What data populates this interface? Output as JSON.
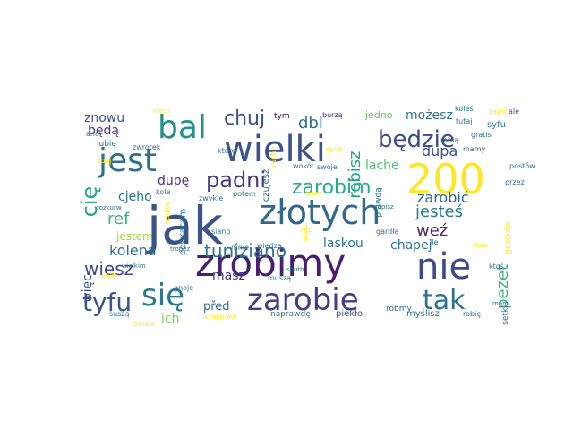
{
  "word_cloud": {
    "words": [
      {
        "text": "jak",
        "color": "#3b528b"
      },
      {
        "text": "zrobimy",
        "color": "#481f70"
      },
      {
        "text": "złotych",
        "color": "#31688e"
      },
      {
        "text": "wielki",
        "color": "#3b528b"
      },
      {
        "text": "200",
        "color": "#fde725"
      },
      {
        "text": "nie",
        "color": "#3e4989"
      },
      {
        "text": "jest",
        "color": "#2d708e"
      },
      {
        "text": "bal",
        "color": "#21918c"
      },
      {
        "text": "się",
        "color": "#2a788e"
      },
      {
        "text": "zarobie",
        "color": "#433e85"
      },
      {
        "text": "tak",
        "color": "#2c728e"
      },
      {
        "text": "tyfu",
        "color": "#38588c"
      },
      {
        "text": "będzie",
        "color": "#3e4a89"
      },
      {
        "text": "padni",
        "color": "#453882"
      },
      {
        "text": "zarobim",
        "color": "#27ad81"
      },
      {
        "text": "chuj",
        "color": "#3b528b"
      },
      {
        "text": "tuniziano",
        "color": "#2a788e"
      },
      {
        "text": "wiesz",
        "color": "#3e4989"
      },
      {
        "text": "jesteś",
        "color": "#287c8e"
      },
      {
        "text": "pezet",
        "color": "#35b779"
      },
      {
        "text": "cię",
        "color": "#21a685"
      },
      {
        "text": "ref",
        "color": "#35b779"
      },
      {
        "text": "dbl",
        "color": "#2c728e"
      },
      {
        "text": "weź",
        "color": "#472d7b"
      },
      {
        "text": "zarobić",
        "color": "#31688e"
      },
      {
        "text": "dupa",
        "color": "#3b528b"
      },
      {
        "text": "kolena",
        "color": "#2c728e"
      },
      {
        "text": "robisz",
        "color": "#20a386"
      },
      {
        "text": "możesz",
        "color": "#2c728e"
      },
      {
        "text": "znowu",
        "color": "#3b528b"
      },
      {
        "text": "będą",
        "color": "#443983"
      },
      {
        "text": "cjeho",
        "color": "#2c728e"
      },
      {
        "text": "dupę",
        "color": "#46327e"
      },
      {
        "text": "lache",
        "color": "#4ec36b"
      },
      {
        "text": "laskou",
        "color": "#2c728e"
      },
      {
        "text": "chapej",
        "color": "#2c728e"
      },
      {
        "text": "masz",
        "color": "#46327e"
      },
      {
        "text": "więc",
        "color": "#3b528b"
      },
      {
        "text": "jestem",
        "color": "#a0da39"
      },
      {
        "text": "ich",
        "color": "#7ad151"
      },
      {
        "text": "před",
        "color": "#31688e"
      },
      {
        "text": "jedno",
        "color": "#5ec962"
      },
      {
        "text": "tym",
        "color": "#440154"
      },
      {
        "text": "burzą",
        "color": "#46327e"
      },
      {
        "text": "tutaj",
        "color": "#2c728e"
      },
      {
        "text": "syfu",
        "color": "#2c728e"
      },
      {
        "text": "koleś",
        "color": "#2c728e"
      },
      {
        "text": "zapić",
        "color": "#fde725"
      },
      {
        "text": "ale",
        "color": "#3b528b"
      },
      {
        "text": "nieco",
        "color": "#fde725"
      },
      {
        "text": "anal",
        "color": "#2c728e"
      },
      {
        "text": "lubię",
        "color": "#2c728e"
      },
      {
        "text": "zwrotek",
        "color": "#2c728e"
      },
      {
        "text": "śpią",
        "color": "#fde725"
      },
      {
        "text": "które",
        "color": "#2c728e"
      },
      {
        "text": "rucha",
        "color": "#fde725"
      },
      {
        "text": "mamy",
        "color": "#3b528b"
      },
      {
        "text": "robią",
        "color": "#2c728e"
      },
      {
        "text": "gratis",
        "color": "#2c728e"
      },
      {
        "text": "czujesz",
        "color": "#2c728e"
      },
      {
        "text": "wokół",
        "color": "#2c728e"
      },
      {
        "text": "swoje",
        "color": "#2c728e"
      },
      {
        "text": "prawdą",
        "color": "#2c728e"
      },
      {
        "text": "postów",
        "color": "#2c728e"
      },
      {
        "text": "przez",
        "color": "#2c728e"
      },
      {
        "text": "kole",
        "color": "#2c728e"
      },
      {
        "text": "zwykle",
        "color": "#2c728e"
      },
      {
        "text": "potem",
        "color": "#2c728e"
      },
      {
        "text": "sram",
        "color": "#fde725"
      },
      {
        "text": "zapisz",
        "color": "#2c728e"
      },
      {
        "text": "rozkurw",
        "color": "#2c728e"
      },
      {
        "text": "powracam",
        "color": "#2c728e"
      },
      {
        "text": "siano",
        "color": "#2c728e"
      },
      {
        "text": "rap",
        "color": "#fde725"
      },
      {
        "text": "gardła",
        "color": "#2c728e"
      },
      {
        "text": "gostków",
        "color": "#fde725"
      },
      {
        "text": "ile",
        "color": "#2c728e"
      },
      {
        "text": "mnie",
        "color": "#2c728e"
      },
      {
        "text": "wiedzą",
        "color": "#2c728e"
      },
      {
        "text": "tropez",
        "color": "#2c728e"
      },
      {
        "text": "fiuta",
        "color": "#fde725"
      },
      {
        "text": "ktoś",
        "color": "#2c728e"
      },
      {
        "text": "naukę",
        "color": "#fde725"
      },
      {
        "text": "wielkim",
        "color": "#2c728e"
      },
      {
        "text": "stylu",
        "color": "#fde725"
      },
      {
        "text": "south",
        "color": "#2c728e"
      },
      {
        "text": "róbmy",
        "color": "#2c728e"
      },
      {
        "text": "setki",
        "color": "#2c728e"
      },
      {
        "text": "mam",
        "color": "#2c728e"
      },
      {
        "text": "suszą",
        "color": "#2c728e"
      },
      {
        "text": "gnoje",
        "color": "#2c728e"
      },
      {
        "text": "chłopaki",
        "color": "#fde725"
      },
      {
        "text": "naprawdę",
        "color": "#2c728e"
      },
      {
        "text": "piekło",
        "color": "#3b528b"
      },
      {
        "text": "myślisz",
        "color": "#2c728e"
      },
      {
        "text": "robię",
        "color": "#2c728e"
      },
      {
        "text": "muszą",
        "color": "#2c728e"
      },
      {
        "text": "bolała",
        "color": "#fde725"
      },
      {
        "text": "grosu",
        "color": "#fde725"
      },
      {
        "text": "świat",
        "color": "#fde725"
      }
    ]
  }
}
